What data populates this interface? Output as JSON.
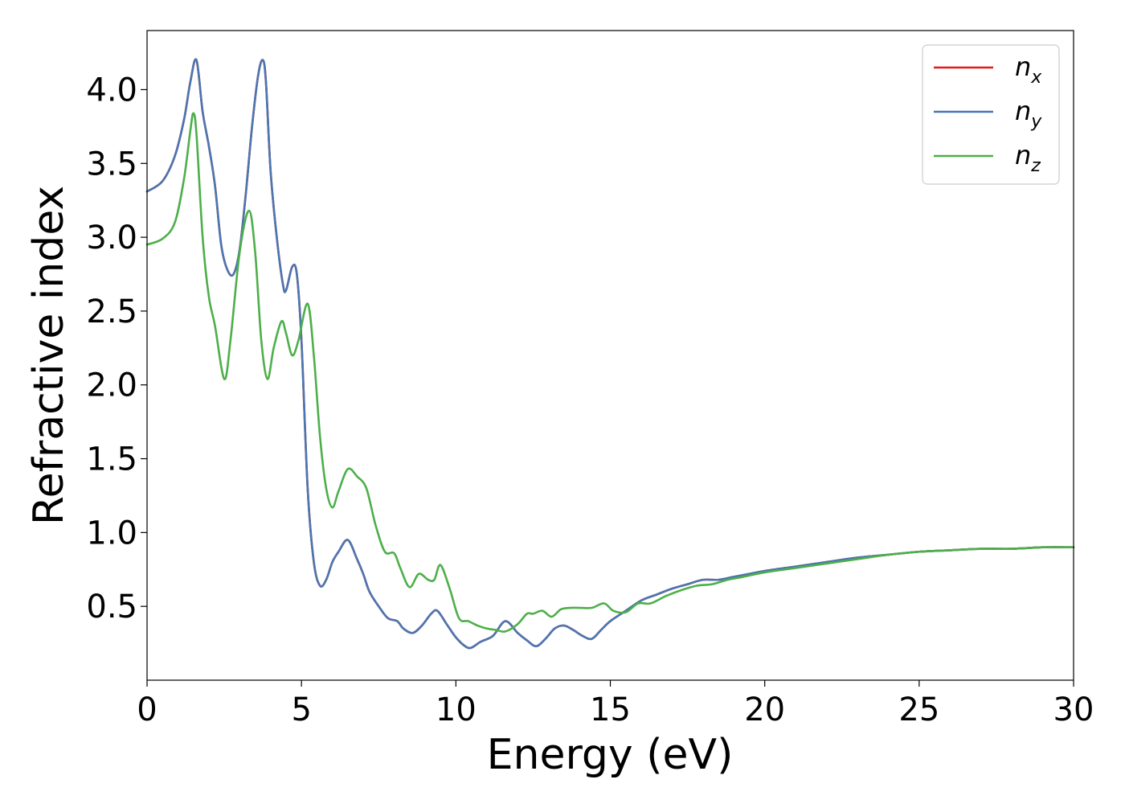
{
  "chart_data": {
    "type": "line",
    "title": "",
    "xlabel": "Energy (eV)",
    "ylabel": "Refractive index",
    "xlim": [
      0,
      30
    ],
    "ylim": [
      0.0,
      4.4
    ],
    "xticks": [
      0,
      5,
      10,
      15,
      20,
      25,
      30
    ],
    "yticks": [
      0.5,
      1.0,
      1.5,
      2.0,
      2.5,
      3.0,
      3.5,
      4.0
    ],
    "xtick_labels": [
      "0",
      "5",
      "10",
      "15",
      "20",
      "25",
      "30"
    ],
    "ytick_labels": [
      "0.5",
      "1.0",
      "1.5",
      "2.0",
      "2.5",
      "3.0",
      "3.5",
      "4.0"
    ],
    "grid": false,
    "legend_position": "top-right",
    "series": [
      {
        "name": "n_x",
        "legend_base": "n",
        "legend_sub": "x",
        "color": "#e41a1c",
        "x": [
          0,
          0.5,
          0.9,
          1.2,
          1.4,
          1.6,
          1.8,
          2.0,
          2.2,
          2.4,
          2.6,
          2.8,
          3.0,
          3.2,
          3.4,
          3.6,
          3.75,
          3.85,
          4.0,
          4.2,
          4.4,
          4.5,
          4.7,
          4.85,
          5.0,
          5.2,
          5.4,
          5.6,
          5.8,
          6.0,
          6.2,
          6.5,
          6.8,
          7.0,
          7.2,
          7.5,
          7.8,
          8.1,
          8.3,
          8.6,
          8.9,
          9.2,
          9.4,
          9.7,
          10.0,
          10.3,
          10.5,
          10.8,
          11.2,
          11.6,
          12.0,
          12.3,
          12.6,
          12.9,
          13.2,
          13.5,
          13.8,
          14.1,
          14.4,
          14.7,
          15.0,
          15.5,
          16.0,
          16.5,
          17.0,
          17.5,
          18.0,
          18.5,
          19.0,
          19.5,
          20.0,
          21.0,
          22.0,
          23.0,
          24.0,
          25.0,
          26.0,
          27.0,
          28.0,
          29.0,
          30.0
        ],
        "y": [
          3.31,
          3.38,
          3.55,
          3.8,
          4.05,
          4.2,
          3.85,
          3.62,
          3.35,
          2.95,
          2.78,
          2.75,
          2.92,
          3.3,
          3.75,
          4.1,
          4.2,
          4.05,
          3.45,
          3.0,
          2.68,
          2.64,
          2.8,
          2.75,
          2.3,
          1.3,
          0.8,
          0.64,
          0.68,
          0.8,
          0.87,
          0.95,
          0.82,
          0.72,
          0.6,
          0.5,
          0.42,
          0.4,
          0.35,
          0.32,
          0.37,
          0.45,
          0.47,
          0.38,
          0.29,
          0.23,
          0.22,
          0.26,
          0.3,
          0.4,
          0.32,
          0.27,
          0.23,
          0.28,
          0.35,
          0.37,
          0.34,
          0.3,
          0.28,
          0.34,
          0.4,
          0.47,
          0.54,
          0.58,
          0.62,
          0.65,
          0.68,
          0.68,
          0.7,
          0.72,
          0.74,
          0.77,
          0.8,
          0.83,
          0.85,
          0.87,
          0.88,
          0.89,
          0.89,
          0.9,
          0.9
        ]
      },
      {
        "name": "n_y",
        "legend_base": "n",
        "legend_sub": "y",
        "color": "#4a76b1",
        "x": [
          0,
          0.5,
          0.9,
          1.2,
          1.4,
          1.6,
          1.8,
          2.0,
          2.2,
          2.4,
          2.6,
          2.8,
          3.0,
          3.2,
          3.4,
          3.6,
          3.75,
          3.85,
          4.0,
          4.2,
          4.4,
          4.5,
          4.7,
          4.85,
          5.0,
          5.2,
          5.4,
          5.6,
          5.8,
          6.0,
          6.2,
          6.5,
          6.8,
          7.0,
          7.2,
          7.5,
          7.8,
          8.1,
          8.3,
          8.6,
          8.9,
          9.2,
          9.4,
          9.7,
          10.0,
          10.3,
          10.5,
          10.8,
          11.2,
          11.6,
          12.0,
          12.3,
          12.6,
          12.9,
          13.2,
          13.5,
          13.8,
          14.1,
          14.4,
          14.7,
          15.0,
          15.5,
          16.0,
          16.5,
          17.0,
          17.5,
          18.0,
          18.5,
          19.0,
          19.5,
          20.0,
          21.0,
          22.0,
          23.0,
          24.0,
          25.0,
          26.0,
          27.0,
          28.0,
          29.0,
          30.0
        ],
        "y": [
          3.31,
          3.38,
          3.55,
          3.8,
          4.05,
          4.2,
          3.85,
          3.62,
          3.35,
          2.95,
          2.78,
          2.75,
          2.92,
          3.3,
          3.75,
          4.1,
          4.2,
          4.05,
          3.45,
          3.0,
          2.68,
          2.64,
          2.8,
          2.75,
          2.3,
          1.3,
          0.8,
          0.64,
          0.68,
          0.8,
          0.87,
          0.95,
          0.82,
          0.72,
          0.6,
          0.5,
          0.42,
          0.4,
          0.35,
          0.32,
          0.37,
          0.45,
          0.47,
          0.38,
          0.29,
          0.23,
          0.22,
          0.26,
          0.3,
          0.4,
          0.32,
          0.27,
          0.23,
          0.28,
          0.35,
          0.37,
          0.34,
          0.3,
          0.28,
          0.34,
          0.4,
          0.47,
          0.54,
          0.58,
          0.62,
          0.65,
          0.68,
          0.68,
          0.7,
          0.72,
          0.74,
          0.77,
          0.8,
          0.83,
          0.85,
          0.87,
          0.88,
          0.89,
          0.89,
          0.9,
          0.9
        ]
      },
      {
        "name": "n_z",
        "legend_base": "n",
        "legend_sub": "z",
        "color": "#4daf4a",
        "x": [
          0,
          0.5,
          0.9,
          1.2,
          1.4,
          1.5,
          1.6,
          1.8,
          2.0,
          2.2,
          2.5,
          2.7,
          3.0,
          3.3,
          3.5,
          3.7,
          3.9,
          4.1,
          4.35,
          4.5,
          4.7,
          4.9,
          5.2,
          5.4,
          5.6,
          5.8,
          6.0,
          6.2,
          6.5,
          6.8,
          7.1,
          7.4,
          7.7,
          8.0,
          8.2,
          8.5,
          8.8,
          9.1,
          9.3,
          9.5,
          9.8,
          10.1,
          10.4,
          10.7,
          11.0,
          11.3,
          11.6,
          12.0,
          12.3,
          12.5,
          12.8,
          13.1,
          13.4,
          13.7,
          14.0,
          14.4,
          14.8,
          15.1,
          15.5,
          15.9,
          16.3,
          16.8,
          17.3,
          17.8,
          18.3,
          18.8,
          19.3,
          20.0,
          21.0,
          22.0,
          23.0,
          24.0,
          25.0,
          26.0,
          27.0,
          28.0,
          29.0,
          30.0
        ],
        "y": [
          2.95,
          2.99,
          3.1,
          3.4,
          3.72,
          3.84,
          3.7,
          3.0,
          2.6,
          2.4,
          2.04,
          2.3,
          2.9,
          3.18,
          2.9,
          2.3,
          2.04,
          2.25,
          2.43,
          2.35,
          2.2,
          2.3,
          2.55,
          2.2,
          1.65,
          1.3,
          1.17,
          1.28,
          1.43,
          1.38,
          1.3,
          1.05,
          0.87,
          0.86,
          0.76,
          0.63,
          0.72,
          0.68,
          0.68,
          0.78,
          0.62,
          0.42,
          0.4,
          0.37,
          0.35,
          0.34,
          0.33,
          0.38,
          0.45,
          0.45,
          0.47,
          0.43,
          0.48,
          0.49,
          0.49,
          0.49,
          0.52,
          0.47,
          0.46,
          0.52,
          0.52,
          0.57,
          0.61,
          0.64,
          0.65,
          0.68,
          0.7,
          0.73,
          0.76,
          0.79,
          0.82,
          0.85,
          0.87,
          0.88,
          0.89,
          0.89,
          0.9,
          0.9
        ]
      }
    ]
  }
}
